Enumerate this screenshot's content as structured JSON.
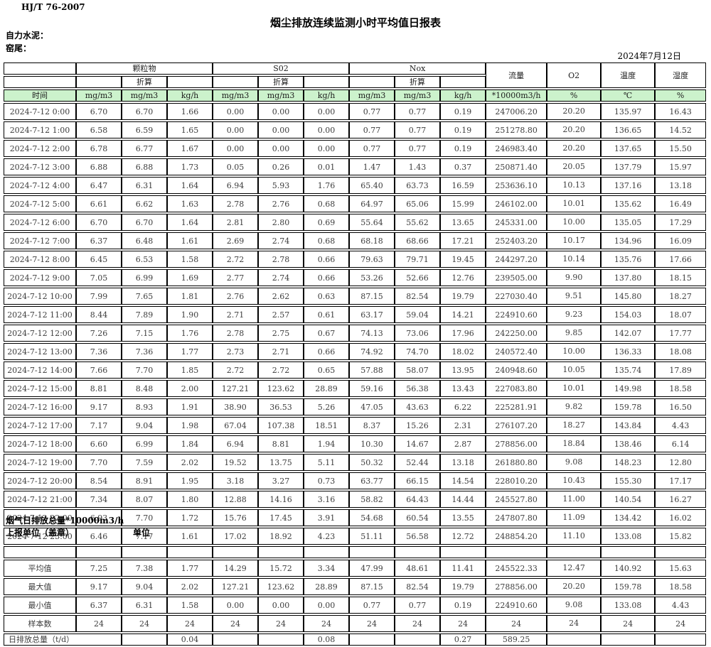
{
  "meta": {
    "standard": "HJ/T  76-2007",
    "title": "烟尘排放连续监测小时平均值日报表",
    "company": "自力水泥：",
    "site": "窑尾：",
    "date": "2024年7月12日"
  },
  "colors": {
    "header_green": "#ccf2cc",
    "border": "#000000"
  },
  "table": {
    "time_label": "时间",
    "converted_label": "折算",
    "groups": [
      "颗粒物",
      "S02",
      "Nox"
    ],
    "flow_label": "流量",
    "o2_label": "O2",
    "temp_label": "温度",
    "humidity_label": "湿度",
    "units": [
      "mg/m3",
      "mg/m3",
      "kg/h",
      "mg/m3",
      "mg/m3",
      "kg/h",
      "mg/m3",
      "mg/m3",
      "kg/h",
      "*10000m3/h",
      "%",
      "℃",
      "%"
    ],
    "rows": [
      {
        "time": "2024-7-12 0:00",
        "values": [
          "6.70",
          "6.70",
          "1.66",
          "0.00",
          "0.00",
          "0.00",
          "0.77",
          "0.77",
          "0.19",
          "247006.20",
          "20.20",
          "135.97",
          "16.43"
        ]
      },
      {
        "time": "2024-7-12 1:00",
        "values": [
          "6.58",
          "6.59",
          "1.65",
          "0.00",
          "0.00",
          "0.00",
          "0.77",
          "0.77",
          "0.19",
          "251278.80",
          "20.20",
          "136.65",
          "14.52"
        ]
      },
      {
        "time": "2024-7-12 2:00",
        "values": [
          "6.78",
          "6.77",
          "1.67",
          "0.00",
          "0.00",
          "0.00",
          "0.77",
          "0.77",
          "0.19",
          "246983.40",
          "20.20",
          "137.65",
          "15.50"
        ]
      },
      {
        "time": "2024-7-12 3:00",
        "values": [
          "6.88",
          "6.88",
          "1.73",
          "0.05",
          "0.26",
          "0.01",
          "1.47",
          "1.43",
          "0.37",
          "250871.40",
          "20.05",
          "137.79",
          "15.97"
        ]
      },
      {
        "time": "2024-7-12 4:00",
        "values": [
          "6.47",
          "6.31",
          "1.64",
          "6.94",
          "5.93",
          "1.76",
          "65.40",
          "63.73",
          "16.59",
          "253636.10",
          "10.13",
          "137.16",
          "13.18"
        ]
      },
      {
        "time": "2024-7-12 5:00",
        "values": [
          "6.61",
          "6.62",
          "1.63",
          "2.78",
          "2.76",
          "0.68",
          "64.97",
          "65.06",
          "15.99",
          "246102.00",
          "10.01",
          "135.62",
          "16.49"
        ]
      },
      {
        "time": "2024-7-12 6:00",
        "values": [
          "6.70",
          "6.70",
          "1.64",
          "2.81",
          "2.80",
          "0.69",
          "55.64",
          "55.62",
          "13.65",
          "245331.00",
          "10.00",
          "135.05",
          "17.29"
        ]
      },
      {
        "time": "2024-7-12 7:00",
        "values": [
          "6.37",
          "6.48",
          "1.61",
          "2.69",
          "2.74",
          "0.68",
          "68.18",
          "68.66",
          "17.21",
          "252403.20",
          "10.17",
          "134.96",
          "16.09"
        ]
      },
      {
        "time": "2024-7-12 8:00",
        "values": [
          "6.45",
          "6.53",
          "1.58",
          "2.72",
          "2.78",
          "0.66",
          "79.63",
          "79.71",
          "19.45",
          "244297.20",
          "10.14",
          "135.76",
          "17.66"
        ]
      },
      {
        "time": "2024-7-12 9:00",
        "values": [
          "7.05",
          "6.99",
          "1.69",
          "2.77",
          "2.74",
          "0.66",
          "53.26",
          "52.66",
          "12.76",
          "239505.00",
          "9.90",
          "137.80",
          "18.15"
        ]
      },
      {
        "time": "2024-7-12 10:00",
        "values": [
          "7.99",
          "7.65",
          "1.81",
          "2.76",
          "2.62",
          "0.63",
          "87.15",
          "82.54",
          "19.79",
          "227030.40",
          "9.51",
          "145.80",
          "18.27"
        ]
      },
      {
        "time": "2024-7-12 11:00",
        "values": [
          "8.44",
          "7.89",
          "1.90",
          "2.71",
          "2.57",
          "0.61",
          "63.17",
          "59.04",
          "14.21",
          "224910.60",
          "9.23",
          "154.03",
          "18.07"
        ]
      },
      {
        "time": "2024-7-12 12:00",
        "values": [
          "7.26",
          "7.15",
          "1.76",
          "2.78",
          "2.75",
          "0.67",
          "74.13",
          "73.06",
          "17.96",
          "242250.00",
          "9.85",
          "142.07",
          "17.77"
        ]
      },
      {
        "time": "2024-7-12 13:00",
        "values": [
          "7.36",
          "7.36",
          "1.77",
          "2.73",
          "2.71",
          "0.66",
          "74.92",
          "74.70",
          "18.02",
          "240572.40",
          "10.00",
          "136.33",
          "18.08"
        ]
      },
      {
        "time": "2024-7-12 14:00",
        "values": [
          "7.66",
          "7.70",
          "1.85",
          "2.72",
          "2.72",
          "0.65",
          "57.88",
          "58.07",
          "13.95",
          "240948.60",
          "10.05",
          "135.74",
          "17.89"
        ]
      },
      {
        "time": "2024-7-12 15:00",
        "values": [
          "8.81",
          "8.48",
          "2.00",
          "127.21",
          "123.62",
          "28.89",
          "59.16",
          "56.38",
          "13.43",
          "227083.80",
          "10.01",
          "149.98",
          "18.58"
        ]
      },
      {
        "time": "2024-7-12 16:00",
        "values": [
          "9.17",
          "8.93",
          "1.91",
          "38.90",
          "36.53",
          "5.26",
          "47.05",
          "43.63",
          "6.22",
          "225281.91",
          "9.82",
          "159.78",
          "16.50"
        ]
      },
      {
        "time": "2024-7-12 17:00",
        "values": [
          "7.17",
          "9.04",
          "1.98",
          "67.04",
          "107.38",
          "18.51",
          "8.37",
          "15.26",
          "2.31",
          "276107.20",
          "18.27",
          "143.84",
          "4.43"
        ]
      },
      {
        "time": "2024-7-12 18:00",
        "values": [
          "6.60",
          "6.99",
          "1.84",
          "6.94",
          "8.81",
          "1.94",
          "10.30",
          "14.67",
          "2.87",
          "278856.00",
          "18.84",
          "138.46",
          "6.14"
        ]
      },
      {
        "time": "2024-7-12 19:00",
        "values": [
          "7.70",
          "7.59",
          "2.02",
          "19.52",
          "13.75",
          "5.11",
          "50.32",
          "52.44",
          "13.18",
          "261880.80",
          "9.08",
          "148.23",
          "12.80"
        ]
      },
      {
        "time": "2024-7-12 20:00",
        "values": [
          "8.54",
          "8.91",
          "1.95",
          "3.18",
          "3.27",
          "0.73",
          "63.77",
          "66.15",
          "14.54",
          "228010.20",
          "10.43",
          "155.30",
          "17.17"
        ]
      },
      {
        "time": "2024-7-12 21:00",
        "values": [
          "7.34",
          "8.07",
          "1.80",
          "12.88",
          "14.16",
          "3.16",
          "58.82",
          "64.43",
          "14.44",
          "245527.80",
          "11.00",
          "140.54",
          "16.27"
        ]
      },
      {
        "time": "2024-7-12 22:00",
        "values": [
          "6.93",
          "7.70",
          "1.72",
          "15.76",
          "17.45",
          "3.91",
          "54.68",
          "60.54",
          "13.55",
          "247807.80",
          "11.09",
          "134.42",
          "16.02"
        ]
      },
      {
        "time": "2024-7-12 23:00",
        "values": [
          "6.46",
          "7.17",
          "1.61",
          "17.02",
          "18.92",
          "4.23",
          "51.11",
          "56.58",
          "12.72",
          "248854.20",
          "11.10",
          "133.08",
          "15.82"
        ]
      }
    ],
    "summary": [
      {
        "label": "平均值",
        "values": [
          "7.25",
          "7.38",
          "1.77",
          "14.29",
          "15.72",
          "3.34",
          "47.99",
          "48.61",
          "11.41",
          "245522.33",
          "12.47",
          "140.92",
          "15.63"
        ]
      },
      {
        "label": "最大值",
        "values": [
          "9.17",
          "9.04",
          "2.02",
          "127.21",
          "123.62",
          "28.89",
          "87.15",
          "82.54",
          "19.79",
          "278856.00",
          "20.20",
          "159.78",
          "18.58"
        ]
      },
      {
        "label": "最小值",
        "values": [
          "6.37",
          "6.31",
          "1.58",
          "0.00",
          "0.00",
          "0.00",
          "0.77",
          "0.77",
          "0.19",
          "224910.60",
          "9.08",
          "133.08",
          "4.43"
        ]
      },
      {
        "label": "样本数",
        "values": [
          "24",
          "24",
          "24",
          "24",
          "24",
          "24",
          "24",
          "24",
          "24",
          "24",
          "24",
          "24",
          "24"
        ]
      }
    ],
    "total": {
      "label": "日排放总量（t/d）",
      "values": [
        "",
        "0.04",
        "",
        "",
        "0.08",
        "",
        "",
        "0.27",
        "589.25",
        "",
        "",
        ""
      ]
    }
  },
  "footer": {
    "note": "烟气日排放总量*10000m3/h",
    "stamp": "上报单位（盖章）",
    "unit": "单位"
  }
}
